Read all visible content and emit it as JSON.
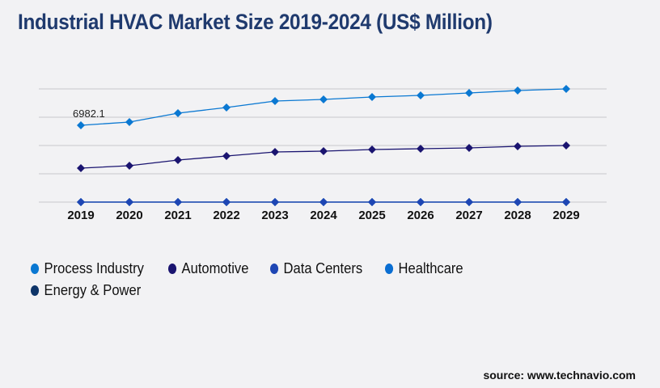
{
  "title": "Industrial HVAC Market Size 2019-2024 (US$ Million)",
  "source": "source: www.technavio.com",
  "chart_data": {
    "type": "line",
    "title": "Industrial HVAC Market Size 2019-2024 (US$ Million)",
    "x": [
      "2019",
      "2020",
      "2021",
      "2022",
      "2023",
      "2024",
      "2025",
      "2026",
      "2027",
      "2028",
      "2029"
    ],
    "ylim": [
      0,
      10290
    ],
    "grid": true,
    "legend": "bottom-left",
    "annotations": [
      {
        "series": "Process Industry",
        "x": "2019",
        "label": "6982.1"
      }
    ],
    "series": [
      {
        "name": "Process Industry",
        "color": "#0a78d2",
        "values": [
          6982.1,
          7276,
          8085,
          8600,
          9188,
          9335,
          9555,
          9702,
          9923,
          10143,
          10290
        ]
      },
      {
        "name": "Automotive",
        "color": "#1a1470",
        "values": [
          3087,
          3308,
          3822,
          4190,
          4557,
          4631,
          4778,
          4851,
          4925,
          5072,
          5145
        ]
      },
      {
        "name": "Data Centers",
        "color": "#1e46b4",
        "values": [
          0,
          0,
          0,
          0,
          0,
          0,
          0,
          0,
          0,
          0,
          0
        ]
      },
      {
        "name": "Healthcare",
        "color": "#0a6ed2",
        "values": [
          0,
          0,
          0,
          0,
          0,
          0,
          0,
          0,
          0,
          0,
          0
        ]
      },
      {
        "name": "Energy & Power",
        "color": "#0d3468",
        "values": [
          0,
          0,
          0,
          0,
          0,
          0,
          0,
          0,
          0,
          0,
          0
        ]
      }
    ]
  }
}
